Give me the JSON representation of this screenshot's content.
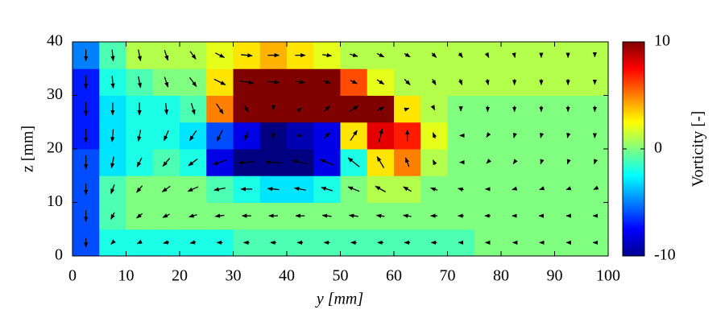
{
  "chart_data": {
    "type": "heatmap",
    "xlabel": "y [mm]",
    "ylabel": "z [mm]",
    "xlim": [
      0,
      100
    ],
    "ylim": [
      0,
      40
    ],
    "xticks": [
      0,
      10,
      20,
      30,
      40,
      50,
      60,
      70,
      80,
      90,
      100
    ],
    "yticks": [
      0,
      10,
      20,
      30,
      40
    ],
    "x": [
      2.5,
      7.5,
      12.5,
      17.5,
      22.5,
      27.5,
      32.5,
      37.5,
      42.5,
      47.5,
      52.5,
      57.5,
      62.5,
      67.5,
      72.5,
      77.5,
      82.5,
      87.5,
      92.5,
      97.5
    ],
    "y": [
      2.5,
      7.5,
      12.5,
      17.5,
      22.5,
      27.5,
      32.5,
      37.5
    ],
    "values": [
      [
        -6,
        -2,
        -2,
        -2,
        -2,
        -2,
        -1,
        -1,
        -1,
        -1,
        -1,
        -1,
        -1,
        -1,
        -1,
        0,
        0,
        0,
        0,
        0
      ],
      [
        -6,
        -1,
        0,
        0,
        0,
        0,
        0,
        0,
        0,
        0,
        0,
        0,
        0,
        0,
        0,
        0,
        0,
        0,
        0,
        0
      ],
      [
        -6,
        -1,
        0,
        0,
        0,
        -1,
        -2,
        -3,
        -3,
        -2,
        0,
        1,
        1,
        0,
        0,
        0,
        0,
        0,
        0,
        0
      ],
      [
        -6,
        -3,
        -2,
        -1,
        -2,
        -8,
        -10,
        -10,
        -10,
        -8,
        -2,
        3,
        5,
        1,
        0,
        0,
        0,
        0,
        0,
        0
      ],
      [
        -7,
        -3,
        -2,
        -2,
        -3,
        -6,
        -8,
        -10,
        -9,
        -8,
        3,
        8,
        7,
        2,
        0,
        0,
        0,
        0,
        0,
        0
      ],
      [
        -7,
        -3,
        -2,
        -2,
        -1,
        5,
        10,
        10,
        10,
        10,
        10,
        10,
        3,
        1,
        0,
        0,
        0,
        0,
        0,
        0
      ],
      [
        -7,
        -2,
        -1,
        0,
        0,
        3,
        10,
        10,
        10,
        10,
        6,
        2,
        1,
        1,
        1,
        1,
        1,
        1,
        1,
        1
      ],
      [
        -5,
        -1,
        1,
        1,
        1,
        2,
        3,
        4,
        3,
        2,
        1,
        1,
        1,
        1,
        1,
        1,
        1,
        1,
        1,
        1
      ]
    ],
    "clim": [
      -10,
      10
    ],
    "colorbar_ticks": [
      -10,
      0,
      10
    ],
    "colorbar_label": "Vorticity [-]",
    "quiver": {
      "color": "#000000",
      "u": [
        [
          0,
          -0.3,
          -0.4,
          -0.5,
          -0.5,
          -0.5,
          -0.5,
          -0.5,
          -0.5,
          -0.5,
          -0.5,
          -0.5,
          -0.5,
          -0.5,
          -0.4,
          -0.4,
          -0.3,
          -0.3,
          -0.3,
          -0.3
        ],
        [
          0,
          -0.3,
          -0.5,
          -0.6,
          -0.7,
          -0.8,
          -0.8,
          -0.8,
          -0.8,
          -0.8,
          -0.8,
          -0.7,
          -0.7,
          -0.6,
          -0.5,
          -0.5,
          -0.4,
          -0.4,
          -0.3,
          -0.3
        ],
        [
          0,
          -0.3,
          -0.5,
          -0.7,
          -0.9,
          -1,
          -1,
          -1,
          -1,
          -1,
          -1,
          -0.9,
          -0.7,
          -0.6,
          -0.5,
          -0.4,
          -0.4,
          -0.3,
          -0.3,
          -0.2
        ],
        [
          0,
          -0.2,
          -0.4,
          -0.6,
          -0.8,
          -1.2,
          -1.4,
          -1.4,
          -1.3,
          -1.2,
          -1,
          -0.6,
          -0.3,
          -0.2,
          -0.2,
          -0.2,
          -0.2,
          -0.1,
          -0.1,
          -0.1
        ],
        [
          0,
          -0.1,
          -0.2,
          -0.4,
          -0.6,
          -0.5,
          -0.3,
          0,
          0.3,
          0.5,
          0.6,
          0.3,
          0,
          -0.2,
          -0.2,
          -0.2,
          -0.1,
          -0.1,
          -0.1,
          0
        ],
        [
          0,
          0,
          0,
          0.1,
          0.3,
          0.6,
          0.3,
          0,
          0.2,
          0.5,
          0.8,
          0.6,
          0.3,
          0.1,
          0,
          0,
          0,
          0,
          0,
          0
        ],
        [
          0,
          0.1,
          0.2,
          0.3,
          0.6,
          1,
          1.2,
          1,
          0.8,
          0.6,
          0.6,
          0.6,
          0.5,
          0.3,
          0.2,
          0.1,
          0,
          0,
          0,
          0
        ],
        [
          0,
          0.1,
          0.2,
          0.3,
          0.5,
          0.8,
          1,
          1,
          0.9,
          0.8,
          0.7,
          0.6,
          0.5,
          0.4,
          0.3,
          0.2,
          0.1,
          0,
          0,
          0
        ]
      ],
      "v": [
        [
          -0.8,
          -0.3,
          -0.2,
          -0.1,
          -0.1,
          0,
          0,
          0,
          0,
          0,
          0,
          0,
          0,
          0,
          0,
          0,
          0,
          0,
          0,
          0
        ],
        [
          -1,
          -0.6,
          -0.4,
          -0.3,
          -0.2,
          -0.1,
          0,
          0,
          0,
          0.1,
          0.1,
          0.1,
          0.1,
          0,
          0,
          0,
          0,
          0,
          0,
          0
        ],
        [
          -1,
          -0.8,
          -0.6,
          -0.5,
          -0.4,
          -0.2,
          0,
          0.1,
          0.2,
          0.3,
          0.4,
          0.5,
          0.4,
          0.2,
          0.1,
          0,
          -0.1,
          -0.1,
          -0.1,
          -0.1
        ],
        [
          -1.2,
          -1,
          -0.8,
          -0.7,
          -0.6,
          -0.4,
          -0.1,
          0.1,
          0.3,
          0.5,
          0.8,
          1,
          0.8,
          0.4,
          0,
          -0.2,
          -0.3,
          -0.3,
          -0.3,
          -0.3
        ],
        [
          -1.2,
          -1.1,
          -1,
          -0.9,
          -0.9,
          -1,
          -0.8,
          -0.5,
          0,
          0.5,
          0.9,
          1.2,
          1,
          0.5,
          0,
          -0.3,
          -0.4,
          -0.4,
          -0.4,
          -0.4
        ],
        [
          -1.2,
          -1.1,
          -1.1,
          -1,
          -1,
          -0.9,
          -0.6,
          -0.2,
          0.2,
          0.5,
          0.5,
          0.3,
          0.1,
          -0.2,
          -0.4,
          -0.5,
          -0.5,
          -0.5,
          -0.5,
          -0.5
        ],
        [
          -1.2,
          -1.1,
          -1,
          -0.9,
          -0.8,
          -0.5,
          -0.2,
          -0.1,
          -0.1,
          -0.2,
          -0.3,
          -0.4,
          -0.5,
          -0.5,
          -0.5,
          -0.5,
          -0.5,
          -0.5,
          -0.5,
          -0.4
        ],
        [
          -1,
          -1,
          -1,
          -0.9,
          -0.7,
          -0.4,
          -0.1,
          0,
          0,
          -0.1,
          -0.2,
          -0.3,
          -0.3,
          -0.4,
          -0.4,
          -0.4,
          -0.4,
          -0.4,
          -0.4,
          -0.3
        ]
      ]
    }
  }
}
